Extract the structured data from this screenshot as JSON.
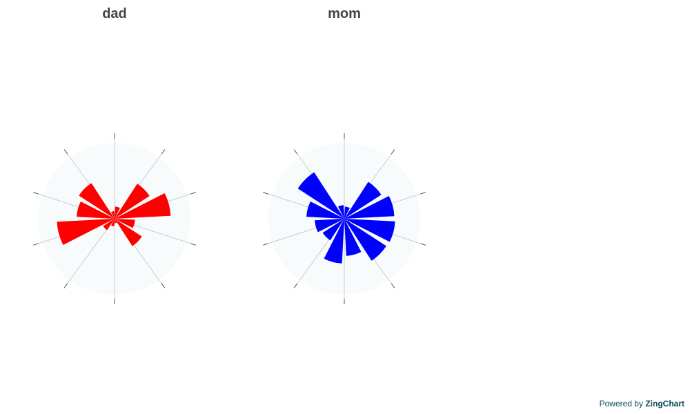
{
  "chart_data": [
    {
      "type": "nightingale-rose",
      "title": "dad",
      "color": "#ff0000",
      "rmax": 100,
      "gridlines": true,
      "spokes": 10,
      "values": [
        16,
        55,
        74,
        27,
        43,
        6,
        10,
        18,
        76,
        50,
        56,
        10
      ]
    },
    {
      "type": "nightingale-rose",
      "title": "mom",
      "color": "#0000ff",
      "rmax": 100,
      "gridlines": true,
      "spokes": 10,
      "values": [
        16,
        58,
        66,
        67,
        66,
        49,
        59,
        34,
        39,
        50,
        73,
        18
      ]
    }
  ],
  "footer": {
    "prefix": "Powered by",
    "brand": "ZingChart"
  }
}
